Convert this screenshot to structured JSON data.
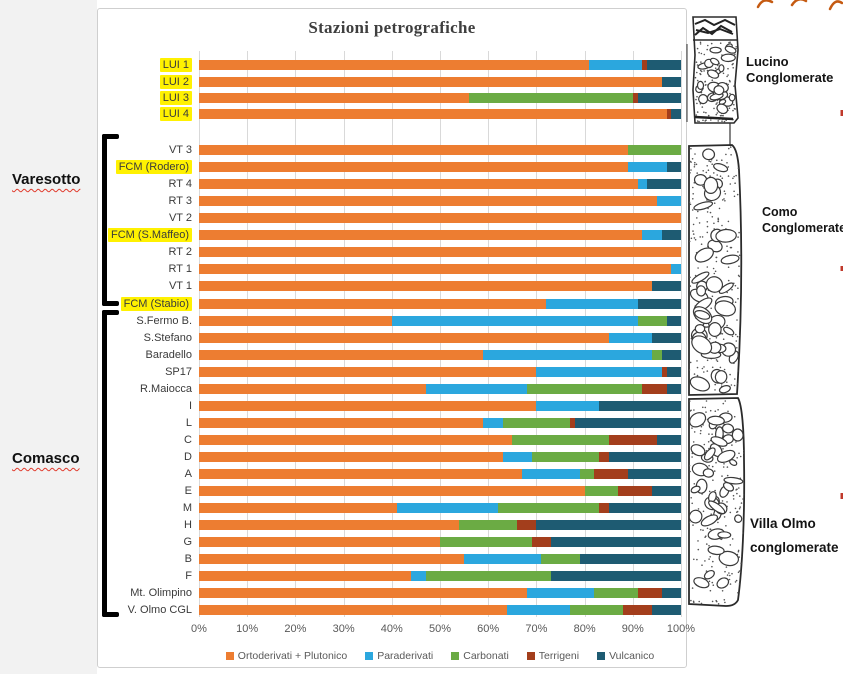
{
  "title": "Stazioni petrografiche",
  "region_labels": {
    "varesotto": "Varesotto",
    "comasco": "Comasco"
  },
  "x_axis": {
    "ticks": [
      "0%",
      "10%",
      "20%",
      "30%",
      "40%",
      "50%",
      "60%",
      "70%",
      "80%",
      "90%",
      "100%"
    ]
  },
  "legend": [
    "Ortoderivati + Plutonico",
    "Paraderivati",
    "Carbonati",
    "Terrigeni",
    "Vulcanico"
  ],
  "colors": {
    "ortoderivati_plutonico": "#ED7D31",
    "paraderivati": "#2BA7DE",
    "carbonati": "#6BAB44",
    "terrigeni": "#A33E1C",
    "vulcanico": "#1E5B72",
    "highlight": "#FFF101",
    "pen_marks": "#C55A11"
  },
  "chart_data": {
    "type": "bar",
    "orientation": "horizontal",
    "stacked": true,
    "percent": true,
    "title": "Stazioni petrografiche",
    "xlim": [
      0,
      100
    ],
    "grid": true,
    "legend_position": "bottom",
    "series_names": [
      "Ortoderivati + Plutonico",
      "Paraderivati",
      "Carbonati",
      "Terrigeni",
      "Vulcanico"
    ],
    "series_colors": [
      "#ED7D31",
      "#2BA7DE",
      "#6BAB44",
      "#A33E1C",
      "#1E5B72"
    ],
    "highlighted_categories": [
      "LUI 1",
      "LUI 2",
      "LUI 3",
      "LUI 4",
      "FCM (Rodero)",
      "FCM (S.Maffeo)",
      "FCM (Stabio)"
    ],
    "groups": [
      {
        "name": "Lucino",
        "rows": [
          "LUI 1",
          "LUI 2",
          "LUI 3",
          "LUI 4"
        ]
      },
      {
        "name": "Varesotto",
        "rows": [
          "VT 3",
          "FCM (Rodero)",
          "RT 4",
          "RT 3",
          "VT 2",
          "FCM (S.Maffeo)",
          "RT 2",
          "RT 1",
          "VT 1",
          "FCM (Stabio)"
        ]
      },
      {
        "name": "Comasco",
        "rows": [
          "S.Fermo B.",
          "S.Stefano",
          "Baradello",
          "SP17",
          "R.Maiocca",
          "I",
          "L",
          "C",
          "D",
          "A",
          "E",
          "M",
          "H",
          "G",
          "B",
          "F",
          "Mt. Olimpino",
          "V. Olmo CGL"
        ]
      }
    ],
    "rows": [
      {
        "label": "LUI 1",
        "highlight": true,
        "values": [
          81,
          11,
          0,
          1,
          7
        ]
      },
      {
        "label": "LUI 2",
        "highlight": true,
        "values": [
          96,
          0,
          0,
          0,
          4
        ]
      },
      {
        "label": "LUI 3",
        "highlight": true,
        "values": [
          56,
          0,
          34,
          1,
          9
        ]
      },
      {
        "label": "LUI 4",
        "highlight": true,
        "values": [
          97,
          0,
          0,
          1,
          2
        ]
      },
      {
        "label": "VT 3",
        "highlight": false,
        "values": [
          89,
          0,
          11,
          0,
          0
        ]
      },
      {
        "label": "FCM (Rodero)",
        "highlight": true,
        "values": [
          89,
          8,
          0,
          0,
          3
        ]
      },
      {
        "label": "RT 4",
        "highlight": false,
        "values": [
          91,
          2,
          0,
          0,
          7
        ]
      },
      {
        "label": "RT 3",
        "highlight": false,
        "values": [
          95,
          5,
          0,
          0,
          0
        ]
      },
      {
        "label": "VT 2",
        "highlight": false,
        "values": [
          100,
          0,
          0,
          0,
          0
        ]
      },
      {
        "label": "FCM (S.Maffeo)",
        "highlight": true,
        "values": [
          92,
          4,
          0,
          0,
          4
        ]
      },
      {
        "label": "RT 2",
        "highlight": false,
        "values": [
          100,
          0,
          0,
          0,
          0
        ]
      },
      {
        "label": "RT 1",
        "highlight": false,
        "values": [
          98,
          2,
          0,
          0,
          0
        ]
      },
      {
        "label": "VT 1",
        "highlight": false,
        "values": [
          94,
          0,
          0,
          0,
          6
        ]
      },
      {
        "label": "FCM (Stabio)",
        "highlight": true,
        "values": [
          72,
          19,
          0,
          0,
          9
        ]
      },
      {
        "label": "S.Fermo B.",
        "highlight": false,
        "values": [
          40,
          51,
          6,
          0,
          3
        ]
      },
      {
        "label": "S.Stefano",
        "highlight": false,
        "values": [
          85,
          9,
          0,
          0,
          6
        ]
      },
      {
        "label": "Baradello",
        "highlight": false,
        "values": [
          59,
          35,
          2,
          0,
          4
        ]
      },
      {
        "label": "SP17",
        "highlight": false,
        "values": [
          70,
          26,
          0,
          1,
          3
        ]
      },
      {
        "label": "R.Maiocca",
        "highlight": false,
        "values": [
          47,
          21,
          24,
          5,
          3
        ]
      },
      {
        "label": "I",
        "highlight": false,
        "values": [
          70,
          13,
          0,
          0,
          17
        ]
      },
      {
        "label": "L",
        "highlight": false,
        "values": [
          59,
          4,
          14,
          1,
          22
        ]
      },
      {
        "label": "C",
        "highlight": false,
        "values": [
          65,
          0,
          20,
          10,
          5
        ]
      },
      {
        "label": "D",
        "highlight": false,
        "values": [
          63,
          6,
          14,
          2,
          15
        ]
      },
      {
        "label": "A",
        "highlight": false,
        "values": [
          67,
          12,
          3,
          7,
          11
        ]
      },
      {
        "label": "E",
        "highlight": false,
        "values": [
          80,
          0,
          7,
          7,
          6
        ]
      },
      {
        "label": "M",
        "highlight": false,
        "values": [
          41,
          21,
          21,
          2,
          15
        ]
      },
      {
        "label": "H",
        "highlight": false,
        "values": [
          54,
          0,
          12,
          4,
          30
        ]
      },
      {
        "label": "G",
        "highlight": false,
        "values": [
          50,
          0,
          19,
          4,
          27
        ]
      },
      {
        "label": "B",
        "highlight": false,
        "values": [
          55,
          16,
          8,
          0,
          21
        ]
      },
      {
        "label": "F",
        "highlight": false,
        "values": [
          44,
          3,
          26,
          0,
          27
        ]
      },
      {
        "label": "Mt. Olimpino",
        "highlight": false,
        "values": [
          68,
          14,
          9,
          5,
          4
        ]
      },
      {
        "label": "V. Olmo CGL",
        "highlight": false,
        "values": [
          64,
          13,
          11,
          6,
          6
        ]
      }
    ]
  },
  "geology": {
    "columns": [
      {
        "id": "lucino",
        "lines": [
          "Lucino",
          "Conglomerate"
        ]
      },
      {
        "id": "como",
        "lines": [
          "Como",
          "Conglomerate"
        ]
      },
      {
        "id": "villa",
        "lines": [
          "Villa Olmo",
          "conglomerate"
        ]
      }
    ]
  }
}
